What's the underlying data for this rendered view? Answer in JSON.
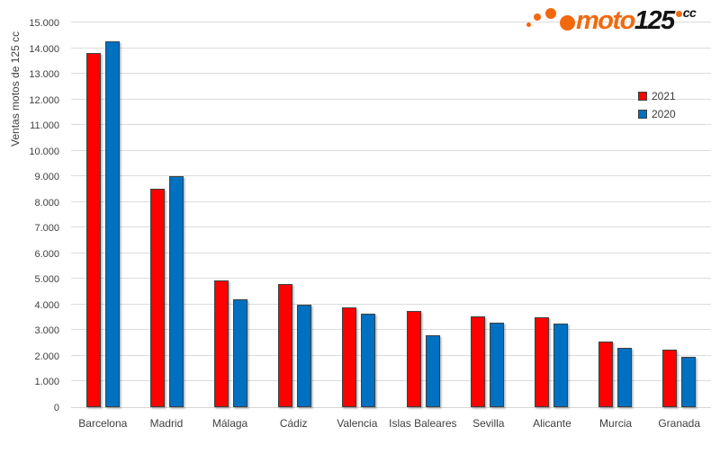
{
  "logo": {
    "brand_orange": "moto",
    "brand_black": "125",
    "brand_suffix": "cc",
    "orange_color": "#f2690d"
  },
  "chart_data": {
    "type": "bar",
    "title": "",
    "xlabel": "",
    "ylabel": "Ventas motos de 125 cc",
    "ylim": [
      0,
      15000
    ],
    "ytick_step": 1000,
    "ytick_labels": [
      "0",
      "1.000",
      "2.000",
      "3.000",
      "4.000",
      "5.000",
      "6.000",
      "7.000",
      "8.000",
      "9.000",
      "10.000",
      "11.000",
      "12.000",
      "13.000",
      "14.000",
      "15.000"
    ],
    "grid": true,
    "legend_position": "right-top",
    "categories": [
      "Barcelona",
      "Madrid",
      "Málaga",
      "Cádiz",
      "Valencia",
      "Islas Baleares",
      "Sevilla",
      "Alicante",
      "Murcia",
      "Granada"
    ],
    "series": [
      {
        "name": "2021",
        "color": "#ff0000",
        "values": [
          13800,
          8500,
          4950,
          4800,
          3900,
          3750,
          3550,
          3500,
          2550,
          2250
        ]
      },
      {
        "name": "2020",
        "color": "#0070c0",
        "values": [
          14250,
          9000,
          4200,
          4000,
          3650,
          2800,
          3300,
          3250,
          2300,
          1950
        ]
      }
    ],
    "colors": {
      "gridline": "#dcdcdc",
      "axis_text": "#404040"
    }
  }
}
